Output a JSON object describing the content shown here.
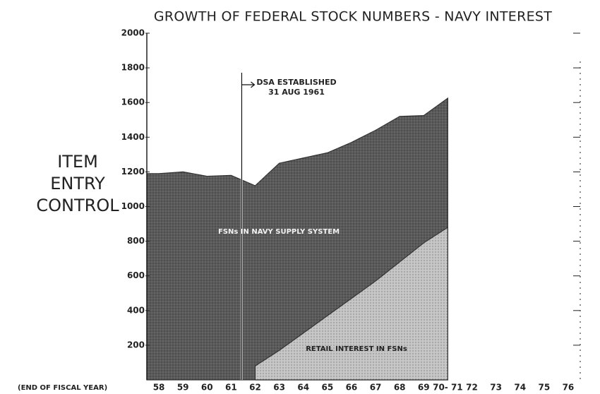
{
  "chart_data": {
    "type": "area",
    "title": "GROWTH OF FEDERAL STOCK NUMBERS - NAVY INTEREST",
    "y_label": [
      "ITEM",
      "ENTRY",
      "CONTROL"
    ],
    "x_label": "(END OF FISCAL YEAR)",
    "annotation": [
      "DSA ESTABLISHED",
      "31 AUG 1961"
    ],
    "categories": [
      "58",
      "59",
      "60",
      "61",
      "62",
      "63",
      "64",
      "65",
      "66",
      "67",
      "68",
      "69",
      "70- 71",
      "72",
      "73",
      "74",
      "75",
      "76"
    ],
    "series": [
      {
        "name": "FSNs IN NAVY SUPPLY SYSTEM",
        "color": "#5a5a5a",
        "values": [
          1190,
          1200,
          1175,
          1180,
          1120,
          1250,
          1280,
          1310,
          1370,
          1440,
          1520,
          1525,
          1625,
          null,
          null,
          null,
          null,
          null
        ]
      },
      {
        "name": "RETAIL INTEREST IN FSNs",
        "color": "#c4c4c4",
        "values": [
          null,
          null,
          null,
          null,
          80,
          170,
          270,
          370,
          470,
          570,
          680,
          790,
          880,
          null,
          null,
          null,
          null,
          null
        ]
      }
    ],
    "ylim": [
      0,
      2000
    ],
    "yticks": [
      200,
      400,
      600,
      800,
      1000,
      1200,
      1400,
      1600,
      1800,
      2000
    ]
  }
}
